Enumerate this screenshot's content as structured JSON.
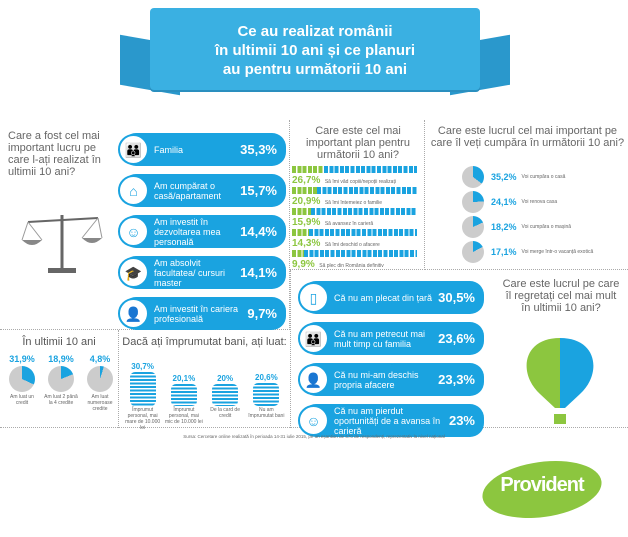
{
  "title": "Ce au realizat românii în ultimii 10 ani și ce planuri au pentru următorii 10 ani",
  "title_lines": [
    "Ce au realizat românii",
    "în ultimii 10 ani și ce planuri",
    "au pentru următorii 10 ani"
  ],
  "achieved": {
    "question": "Care a fost cel mai important lucru pe care l-ați realizat în ultimii 10 ani?",
    "items": [
      {
        "label": "Familia",
        "value": "35,3%",
        "icon": "family-icon"
      },
      {
        "label": "Am cumpărat o casă/apartament",
        "value": "15,7%",
        "icon": "house-icon"
      },
      {
        "label": "Am investit în dezvoltarea mea personală",
        "value": "14,4%",
        "icon": "person-icon"
      },
      {
        "label": "Am absolvit facultatea/ cursuri master",
        "value": "14,1%",
        "icon": "graduation-cap-icon"
      },
      {
        "label": "Am investit în cariera profesională",
        "value": "9,7%",
        "icon": "businessman-icon"
      }
    ]
  },
  "plans": {
    "question": "Care este cel mai important plan pentru următorii 10 ani?",
    "items": [
      {
        "value": "26,7%",
        "share": 26.7,
        "label": "Să îmi văd copiii/nepoții realizați"
      },
      {
        "value": "20,9%",
        "share": 20.9,
        "label": "Să îmi întemeiez o familie"
      },
      {
        "value": "15,9%",
        "share": 15.9,
        "label": "Să avansez în carieră"
      },
      {
        "value": "14,3%",
        "share": 14.3,
        "label": "Să îmi deschid o afacere"
      },
      {
        "value": "9,9%",
        "share": 9.9,
        "label": "Să plec din România definitiv"
      }
    ]
  },
  "purchases": {
    "question": "Care este lucrul cel mai important pe care îl veți cumpăra în următorii 10 ani?",
    "items": [
      {
        "value": "35,2%",
        "share": 35.2,
        "label": "Voi cumpăra o casă"
      },
      {
        "value": "24,1%",
        "share": 24.1,
        "label": "Voi renova casa"
      },
      {
        "value": "18,2%",
        "share": 18.2,
        "label": "Voi cumpăra o mașină"
      },
      {
        "value": "17,1%",
        "share": 17.1,
        "label": "Voi merge într-o vacanță exotică"
      }
    ]
  },
  "regrets": {
    "question": "Care este lucrul pe care îl regretați cel mai mult în ultimii 10 ani?",
    "items": [
      {
        "label": "Că nu am plecat din țară",
        "value": "30,5%",
        "icon": "passport-icon"
      },
      {
        "label": "Că nu am petrecut mai mult timp cu familia",
        "value": "23,6%",
        "icon": "family-icon"
      },
      {
        "label": "Că nu mi-am deschis propria afacere",
        "value": "23,3%",
        "icon": "businessman-icon"
      },
      {
        "label": "Că nu am pierdut oportunități de a avansa în carieră",
        "value": "23%",
        "icon": "person-icon"
      }
    ]
  },
  "credits": {
    "title": "În ultimii 10 ani",
    "items": [
      {
        "value": "31,9%",
        "share": 31.9,
        "label": "Am luat un credit"
      },
      {
        "value": "18,9%",
        "share": 18.9,
        "label": "Am luat 2 până la 4 credite"
      },
      {
        "value": "4,8%",
        "share": 4.8,
        "label": "Am luat numeroase credite"
      }
    ]
  },
  "loans": {
    "title": "Dacă ați împrumutat bani, ați luat:",
    "items": [
      {
        "value": "30,7%",
        "share": 30.7,
        "label": "Împrumut personal, mai mare de 10.000 lei"
      },
      {
        "value": "20,1%",
        "share": 20.1,
        "label": "Împrumut personal, mai mic de 10.000 lei"
      },
      {
        "value": "20%",
        "share": 20,
        "label": "De la card de credit"
      },
      {
        "value": "20,6%",
        "share": 20.6,
        "label": "Nu am împrumutat bani"
      }
    ]
  },
  "source": "Sursa: Cercetare online realizată în perioada 14-31 iulie 2015, pe un eșantion de 670 de respondenți, reprezentativ la nivel național",
  "brand": "Provident",
  "colors": {
    "accent": "#1aa3e0",
    "green": "#8cc63f",
    "grey": "#cccccc"
  }
}
